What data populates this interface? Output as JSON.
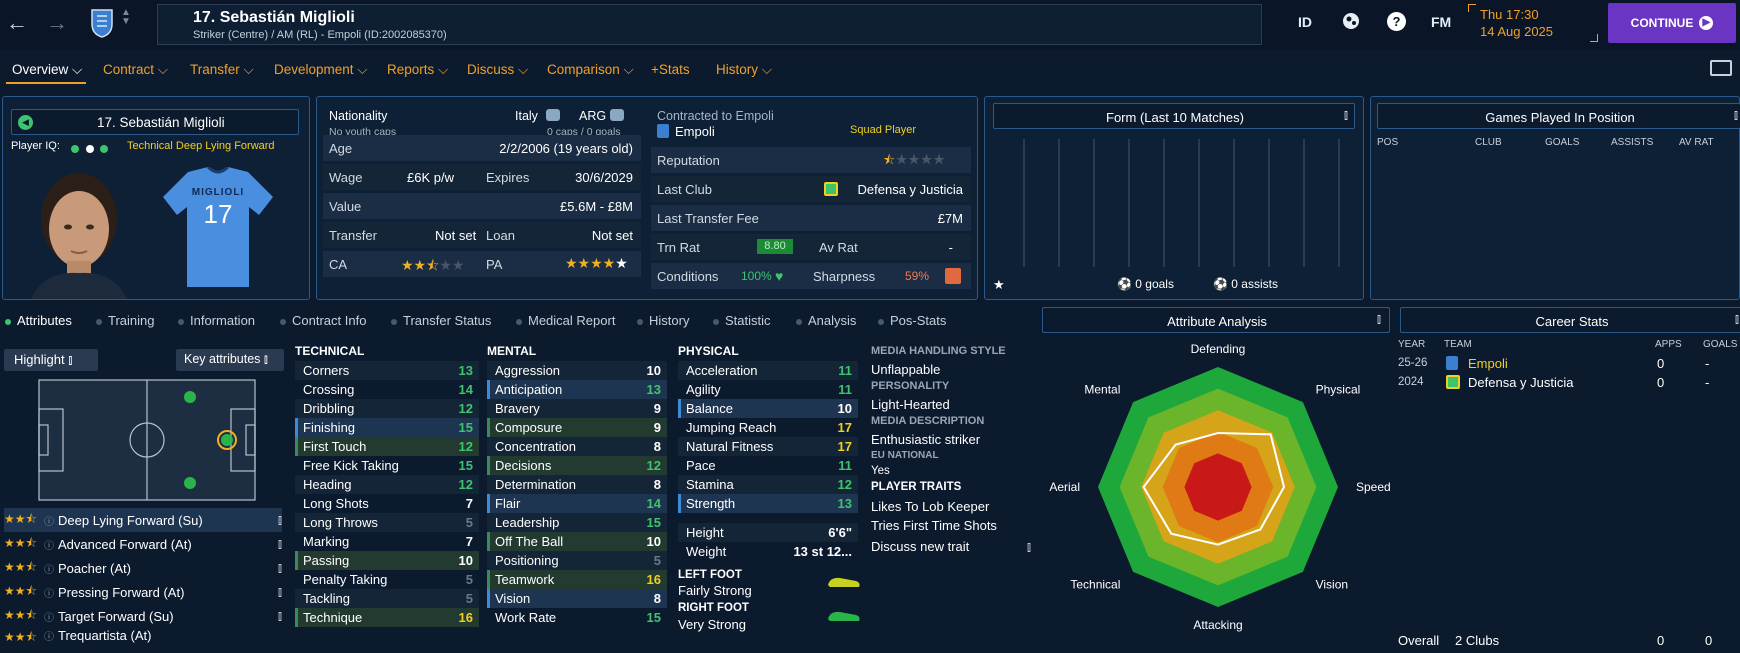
{
  "header": {
    "player_title": "17. Sebastián Miglioli",
    "player_subtitle": "Striker (Centre) / AM (RL) - Empoli (ID:2002085370)",
    "icons": [
      "back-icon",
      "forward-icon",
      "club-crest-icon",
      "search-icon"
    ],
    "right_icons": {
      "id": "ID",
      "fm": "FM",
      "help": "?"
    },
    "time": "Thu 17:30",
    "date": "14 Aug 2025",
    "continue_label": "CONTINUE"
  },
  "menu": {
    "items": [
      "Overview",
      "Contract",
      "Transfer",
      "Development",
      "Reports",
      "Discuss",
      "Comparison",
      "+Stats",
      "History"
    ]
  },
  "profile": {
    "name": "17. Sebastián Miglioli",
    "iq_label": "Player IQ:",
    "role_label": "Technical  Deep Lying Forward",
    "shirt_name": "MIGLIOLI",
    "shirt_number": "17"
  },
  "info": {
    "nationality_label": "Nationality",
    "nat1": "Italy",
    "nat2": "ARG",
    "youth_caps": "No youth caps",
    "caps": "0 caps / 0 goals",
    "age_label": "Age",
    "age_value": "2/2/2006 (19 years old)",
    "wage_label": "Wage",
    "wage_value": "£6K p/w",
    "expires_label": "Expires",
    "expires_value": "30/6/2029",
    "value_label": "Value",
    "value_value": "£5.6M - £8M",
    "transfer_label": "Transfer",
    "transfer_value": "Not set",
    "loan_label": "Loan",
    "loan_value": "Not set",
    "ca_label": "CA",
    "pa_label": "PA",
    "ca_stars": 2.5,
    "pa_stars": 5
  },
  "contract": {
    "contracted_label": "Contracted to Empoli",
    "club": "Empoli",
    "squad_status": "Squad Player",
    "reputation_label": "Reputation",
    "reputation_stars": 0.5,
    "last_club_label": "Last Club",
    "last_club_value": "Defensa y Justicia",
    "last_fee_label": "Last Transfer Fee",
    "last_fee_value": "£7M",
    "trn_rat_label": "Trn Rat",
    "trn_rat_value": "8.80",
    "av_rat_label": "Av Rat",
    "av_rat_value": "-",
    "conditions_label": "Conditions",
    "conditions_value": "100%",
    "sharpness_label": "Sharpness",
    "sharpness_value": "59%"
  },
  "form": {
    "title": "Form (Last 10 Matches)",
    "goals": "0 goals",
    "assists": "0 assists"
  },
  "positions": {
    "title": "Games Played In Position",
    "columns": [
      "POS",
      "CLUB",
      "GOALS",
      "ASSISTS",
      "AV RAT"
    ]
  },
  "subtabs": [
    "Attributes",
    "Training",
    "Information",
    "Contract Info",
    "Transfer Status",
    "Medical Report",
    "History",
    "Statistic",
    "Analysis",
    "Pos-Stats"
  ],
  "attributes": {
    "highlight_label": "Highlight",
    "key_attr_label": "Key attributes",
    "technical_title": "TECHNICAL",
    "mental_title": "MENTAL",
    "physical_title": "PHYSICAL",
    "technical": [
      {
        "name": "Corners",
        "value": "13",
        "c": "g",
        "hl": ""
      },
      {
        "name": "Crossing",
        "value": "14",
        "c": "g",
        "hl": ""
      },
      {
        "name": "Dribbling",
        "value": "12",
        "c": "g",
        "hl": ""
      },
      {
        "name": "Finishing",
        "value": "15",
        "c": "g",
        "hl": "hl"
      },
      {
        "name": "First Touch",
        "value": "12",
        "c": "g",
        "hl": "hl2"
      },
      {
        "name": "Free Kick Taking",
        "value": "15",
        "c": "g",
        "hl": ""
      },
      {
        "name": "Heading",
        "value": "12",
        "c": "g",
        "hl": ""
      },
      {
        "name": "Long Shots",
        "value": "7",
        "c": "w",
        "hl": ""
      },
      {
        "name": "Long Throws",
        "value": "5",
        "c": "d",
        "hl": ""
      },
      {
        "name": "Marking",
        "value": "7",
        "c": "w",
        "hl": ""
      },
      {
        "name": "Passing",
        "value": "10",
        "c": "w",
        "hl": "hl2"
      },
      {
        "name": "Penalty Taking",
        "value": "5",
        "c": "d",
        "hl": ""
      },
      {
        "name": "Tackling",
        "value": "5",
        "c": "d",
        "hl": ""
      },
      {
        "name": "Technique",
        "value": "16",
        "c": "y",
        "hl": "hl2"
      }
    ],
    "mental": [
      {
        "name": "Aggression",
        "value": "10",
        "c": "w",
        "hl": ""
      },
      {
        "name": "Anticipation",
        "value": "13",
        "c": "g",
        "hl": "hl"
      },
      {
        "name": "Bravery",
        "value": "9",
        "c": "w",
        "hl": ""
      },
      {
        "name": "Composure",
        "value": "9",
        "c": "w",
        "hl": "hl2"
      },
      {
        "name": "Concentration",
        "value": "8",
        "c": "w",
        "hl": ""
      },
      {
        "name": "Decisions",
        "value": "12",
        "c": "g",
        "hl": "hl2"
      },
      {
        "name": "Determination",
        "value": "8",
        "c": "w",
        "hl": ""
      },
      {
        "name": "Flair",
        "value": "14",
        "c": "g",
        "hl": "hl"
      },
      {
        "name": "Leadership",
        "value": "15",
        "c": "g",
        "hl": ""
      },
      {
        "name": "Off The Ball",
        "value": "10",
        "c": "w",
        "hl": "hl2"
      },
      {
        "name": "Positioning",
        "value": "5",
        "c": "d",
        "hl": ""
      },
      {
        "name": "Teamwork",
        "value": "16",
        "c": "y",
        "hl": "hl2"
      },
      {
        "name": "Vision",
        "value": "8",
        "c": "w",
        "hl": "hl"
      },
      {
        "name": "Work Rate",
        "value": "15",
        "c": "g",
        "hl": ""
      }
    ],
    "physical": [
      {
        "name": "Acceleration",
        "value": "11",
        "c": "g",
        "hl": ""
      },
      {
        "name": "Agility",
        "value": "11",
        "c": "g",
        "hl": ""
      },
      {
        "name": "Balance",
        "value": "10",
        "c": "w",
        "hl": "hl"
      },
      {
        "name": "Jumping Reach",
        "value": "17",
        "c": "y",
        "hl": ""
      },
      {
        "name": "Natural Fitness",
        "value": "17",
        "c": "y",
        "hl": ""
      },
      {
        "name": "Pace",
        "value": "11",
        "c": "g",
        "hl": ""
      },
      {
        "name": "Stamina",
        "value": "12",
        "c": "g",
        "hl": ""
      },
      {
        "name": "Strength",
        "value": "13",
        "c": "g",
        "hl": "hl"
      }
    ],
    "height_label": "Height",
    "height_value": "6'6\"",
    "weight_label": "Weight",
    "weight_value": "13 st 12...",
    "left_foot_label": "LEFT FOOT",
    "left_foot_value": "Fairly Strong",
    "right_foot_label": "RIGHT FOOT",
    "right_foot_value": "Very Strong"
  },
  "roles": [
    {
      "name": "Deep Lying Forward (Su)",
      "stars": 2.5
    },
    {
      "name": "Advanced Forward (At)",
      "stars": 2.5
    },
    {
      "name": "Poacher (At)",
      "stars": 2.5
    },
    {
      "name": "Pressing Forward (At)",
      "stars": 2.5
    },
    {
      "name": "Target Forward (Su)",
      "stars": 2.5
    },
    {
      "name": "Trequartista (At)",
      "stars": 2.5
    }
  ],
  "personality": {
    "media_style_label": "MEDIA HANDLING STYLE",
    "media_style_value": "Unflappable",
    "personality_label": "PERSONALITY",
    "personality_value": "Light-Hearted",
    "media_desc_label": "MEDIA DESCRIPTION",
    "media_desc_value": "Enthusiastic striker",
    "eu_label": "EU NATIONAL",
    "eu_value": "Yes",
    "traits_label": "PLAYER TRAITS",
    "traits": [
      "Likes To Lob Keeper",
      "Tries First Time Shots"
    ],
    "discuss_label": "Discuss new trait"
  },
  "analysis": {
    "title": "Attribute Analysis",
    "axes": [
      "Defending",
      "Physical",
      "Speed",
      "Vision",
      "Attacking",
      "Technical",
      "Aerial",
      "Mental"
    ],
    "values": [
      0.45,
      0.62,
      0.55,
      0.5,
      0.48,
      0.55,
      0.62,
      0.5
    ]
  },
  "career": {
    "title": "Career Stats",
    "columns": [
      "YEAR",
      "TEAM",
      "APPS",
      "GOALS"
    ],
    "rows": [
      {
        "year": "25-26",
        "team": "Empoli",
        "apps": "0",
        "goals": "-"
      },
      {
        "year": "2024",
        "team": "Defensa y Justicia",
        "apps": "0",
        "goals": "-"
      }
    ],
    "overall_label": "Overall",
    "overall_clubs": "2 Clubs",
    "overall_apps": "0",
    "overall_goals": "0"
  },
  "colors": {
    "accent": "#f0a02a",
    "continue": "#6a35c2",
    "green": "#3ec46d",
    "yellow": "#f0d020"
  }
}
